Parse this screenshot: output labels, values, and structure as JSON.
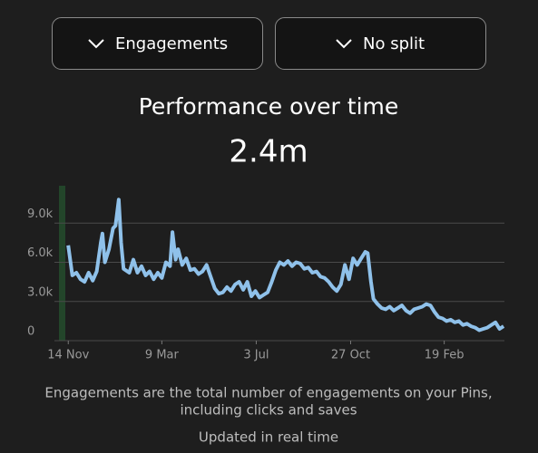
{
  "buttons": [
    "Engagements",
    "No split"
  ],
  "chart_data": {
    "type": "line",
    "title": "Performance over time",
    "subtitle": "2.4m",
    "x": [
      0,
      5,
      10,
      15,
      20,
      25,
      30,
      35,
      40,
      42,
      45,
      50,
      55,
      58,
      62,
      65,
      68,
      75,
      80,
      85,
      90,
      95,
      100,
      105,
      110,
      115,
      120,
      125,
      128,
      132,
      135,
      140,
      145,
      150,
      155,
      160,
      165,
      170,
      175,
      180,
      185,
      190,
      195,
      200,
      205,
      210,
      215,
      220,
      225,
      230,
      235,
      240,
      245,
      250,
      255,
      260,
      265,
      270,
      275,
      280,
      285,
      290,
      295,
      300,
      305,
      310,
      315,
      320,
      325,
      330,
      335,
      340,
      345,
      350,
      355,
      360,
      365,
      368,
      372,
      375,
      380,
      385,
      390,
      395,
      400,
      405,
      410,
      415,
      420,
      425,
      430,
      435,
      440,
      445,
      450,
      455,
      460,
      465,
      470,
      475,
      480,
      485,
      490,
      495,
      500,
      505,
      510,
      515,
      520,
      525,
      530,
      535
    ],
    "series": [
      {
        "name": "Engagements",
        "color": "#8fc1ea",
        "values": [
          7300,
          5000,
          5200,
          4700,
          4500,
          5200,
          4600,
          5300,
          7500,
          8200,
          6000,
          7000,
          8600,
          8800,
          10800,
          7500,
          5500,
          5200,
          6200,
          5200,
          5700,
          5000,
          5300,
          4700,
          5200,
          4800,
          6000,
          5700,
          8300,
          6200,
          7000,
          5800,
          6300,
          5400,
          5500,
          5100,
          5300,
          5800,
          4900,
          4000,
          3600,
          3700,
          4100,
          3800,
          4300,
          4500,
          3900,
          4500,
          3400,
          3800,
          3300,
          3500,
          3700,
          4500,
          5400,
          6000,
          5800,
          6100,
          5700,
          6000,
          5900,
          5500,
          5600,
          5200,
          5300,
          4900,
          4800,
          4500,
          4100,
          3800,
          4300,
          5800,
          4700,
          6300,
          5800,
          6300,
          6800,
          6700,
          4500,
          3200,
          2800,
          2500,
          2400,
          2600,
          2300,
          2500,
          2700,
          2300,
          2100,
          2400,
          2500,
          2600,
          2800,
          2700,
          2200,
          1800,
          1700,
          1500,
          1600,
          1400,
          1500,
          1200,
          1300,
          1100,
          1000,
          800,
          900,
          1000,
          1200,
          1400,
          900,
          1100
        ]
      }
    ],
    "xlim": [
      -17,
      536
    ],
    "xticks": [
      {
        "value": 0,
        "label": "14 Nov"
      },
      {
        "value": 115,
        "label": "9 Mar"
      },
      {
        "value": 231,
        "label": "3 Jul"
      },
      {
        "value": 347,
        "label": "27 Oct"
      },
      {
        "value": 462,
        "label": "19 Feb"
      }
    ],
    "ylim": [
      0,
      12000
    ],
    "yticks": [
      0,
      {
        "value": 3000,
        "label": "3.0k"
      },
      {
        "value": 6000,
        "label": "6.0k"
      },
      {
        "value": 9000,
        "label": "9.0k"
      }
    ],
    "grid": true
  },
  "description": [
    "Engagements are the total number of engagements on your Pins,",
    "including clicks and saves"
  ],
  "footer": "Updated in real time"
}
